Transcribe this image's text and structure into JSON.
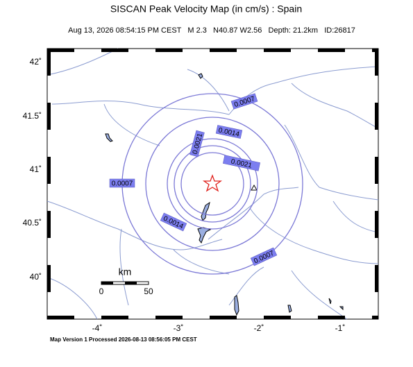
{
  "header": {
    "title": "SISCAN Peak Velocity Map (in cm/s) : Spain",
    "subtitle": "Aug 13, 2026 08:54:15 PM CEST   M 2.3   N40.87 W2.56   Depth: 21.2km   ID:26817"
  },
  "map": {
    "latitude_labels": [
      "42˚",
      "41.5˚",
      "41˚",
      "40.5˚",
      "40˚"
    ],
    "longitude_labels": [
      "-4˚",
      "-3˚",
      "-2˚",
      "-1˚"
    ],
    "contour_labels": [
      "0.0007",
      "0.0014",
      "0.0021",
      "0.0021",
      "0.0007",
      "0.0014",
      "0.0007"
    ],
    "scale_bar": {
      "unit": "km",
      "labels": [
        "0",
        "50"
      ]
    }
  },
  "footer": "Map Version 1 Processed 2026-08-13 08:56:05 PM CEST"
}
